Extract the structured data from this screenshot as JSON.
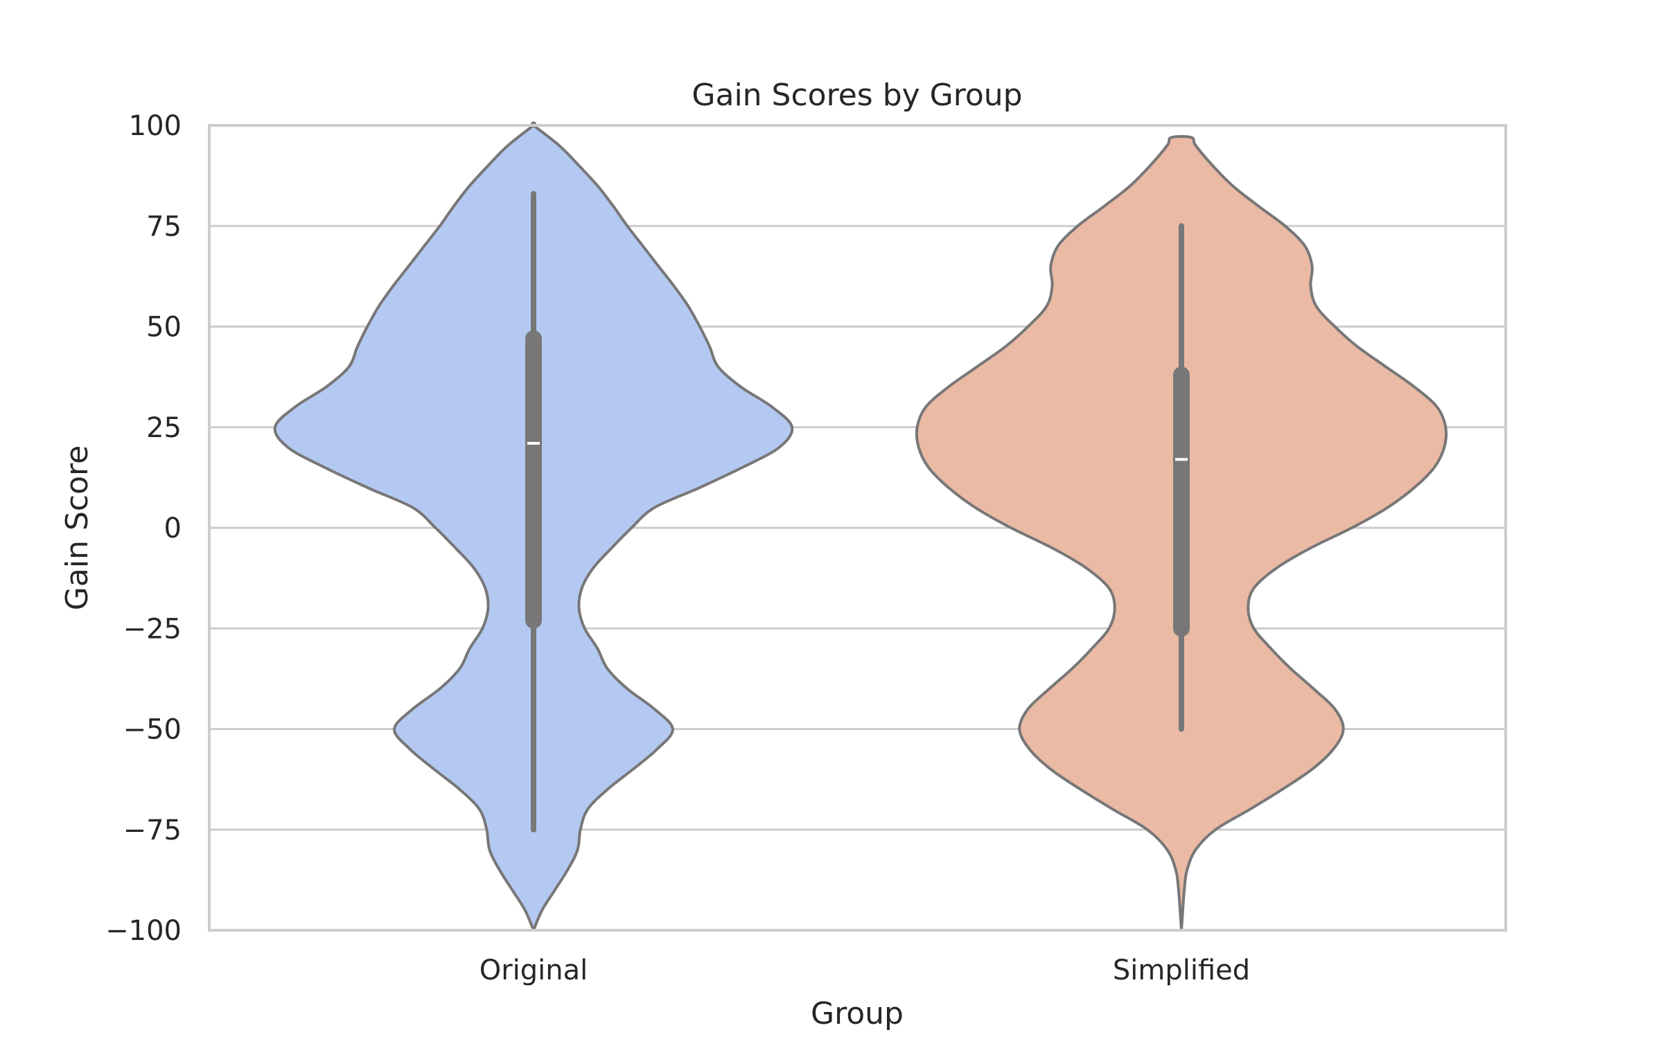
{
  "chart_data": {
    "type": "violin",
    "title": "Gain Scores by Group",
    "xlabel": "Group",
    "ylabel": "Gain Score",
    "categories": [
      "Original",
      "Simplified"
    ],
    "ylim": [
      -100,
      100
    ],
    "yticks": [
      -100,
      -75,
      -50,
      -25,
      0,
      25,
      50,
      75,
      100
    ],
    "ytick_labels": [
      "−100",
      "−75",
      "−50",
      "−25",
      "0",
      "25",
      "50",
      "75",
      "100"
    ],
    "grid": "horizontal",
    "colors": {
      "Original": "#b4c9f2",
      "Simplified": "#ebbaa5",
      "outline": "#777777",
      "box": "#777777",
      "median": "#ffffff",
      "grid": "#cccccc",
      "frame": "#cccccc"
    },
    "series": [
      {
        "name": "Original",
        "median": 21,
        "q1": -23,
        "q3": 47,
        "whisker_low": -75,
        "whisker_high": 83,
        "min": -100,
        "max": 100,
        "density_profile": [
          [
            -100,
            0.0
          ],
          [
            -95,
            0.06
          ],
          [
            -90,
            0.15
          ],
          [
            -85,
            0.24
          ],
          [
            -80,
            0.31
          ],
          [
            -75,
            0.33
          ],
          [
            -70,
            0.38
          ],
          [
            -65,
            0.52
          ],
          [
            -60,
            0.7
          ],
          [
            -55,
            0.87
          ],
          [
            -50,
            0.98
          ],
          [
            -45,
            0.85
          ],
          [
            -40,
            0.66
          ],
          [
            -35,
            0.52
          ],
          [
            -30,
            0.45
          ],
          [
            -25,
            0.36
          ],
          [
            -20,
            0.32
          ],
          [
            -15,
            0.34
          ],
          [
            -10,
            0.42
          ],
          [
            -5,
            0.55
          ],
          [
            0,
            0.69
          ],
          [
            5,
            0.85
          ],
          [
            10,
            1.17
          ],
          [
            15,
            1.47
          ],
          [
            20,
            1.73
          ],
          [
            25,
            1.82
          ],
          [
            30,
            1.68
          ],
          [
            35,
            1.46
          ],
          [
            40,
            1.3
          ],
          [
            45,
            1.24
          ],
          [
            50,
            1.17
          ],
          [
            55,
            1.09
          ],
          [
            60,
            0.99
          ],
          [
            65,
            0.88
          ],
          [
            70,
            0.77
          ],
          [
            75,
            0.66
          ],
          [
            80,
            0.56
          ],
          [
            85,
            0.45
          ],
          [
            90,
            0.32
          ],
          [
            95,
            0.18
          ],
          [
            100,
            0.0
          ]
        ]
      },
      {
        "name": "Simplified",
        "median": 17,
        "q1": -25,
        "q3": 38,
        "whisker_low": -50,
        "whisker_high": 75,
        "min": -100,
        "max": 97,
        "density_profile": [
          [
            -100,
            0.0
          ],
          [
            -90,
            0.02
          ],
          [
            -85,
            0.04
          ],
          [
            -80,
            0.1
          ],
          [
            -75,
            0.24
          ],
          [
            -70,
            0.48
          ],
          [
            -65,
            0.71
          ],
          [
            -60,
            0.92
          ],
          [
            -55,
            1.07
          ],
          [
            -50,
            1.14
          ],
          [
            -45,
            1.08
          ],
          [
            -40,
            0.93
          ],
          [
            -35,
            0.77
          ],
          [
            -30,
            0.63
          ],
          [
            -25,
            0.51
          ],
          [
            -20,
            0.47
          ],
          [
            -15,
            0.51
          ],
          [
            -10,
            0.67
          ],
          [
            -5,
            0.91
          ],
          [
            0,
            1.2
          ],
          [
            5,
            1.45
          ],
          [
            10,
            1.64
          ],
          [
            15,
            1.78
          ],
          [
            20,
            1.85
          ],
          [
            25,
            1.86
          ],
          [
            30,
            1.8
          ],
          [
            35,
            1.64
          ],
          [
            40,
            1.44
          ],
          [
            45,
            1.24
          ],
          [
            50,
            1.08
          ],
          [
            55,
            0.95
          ],
          [
            60,
            0.91
          ],
          [
            65,
            0.92
          ],
          [
            70,
            0.87
          ],
          [
            75,
            0.73
          ],
          [
            80,
            0.54
          ],
          [
            85,
            0.36
          ],
          [
            90,
            0.22
          ],
          [
            95,
            0.1
          ],
          [
            97,
            0.07
          ]
        ]
      }
    ]
  }
}
